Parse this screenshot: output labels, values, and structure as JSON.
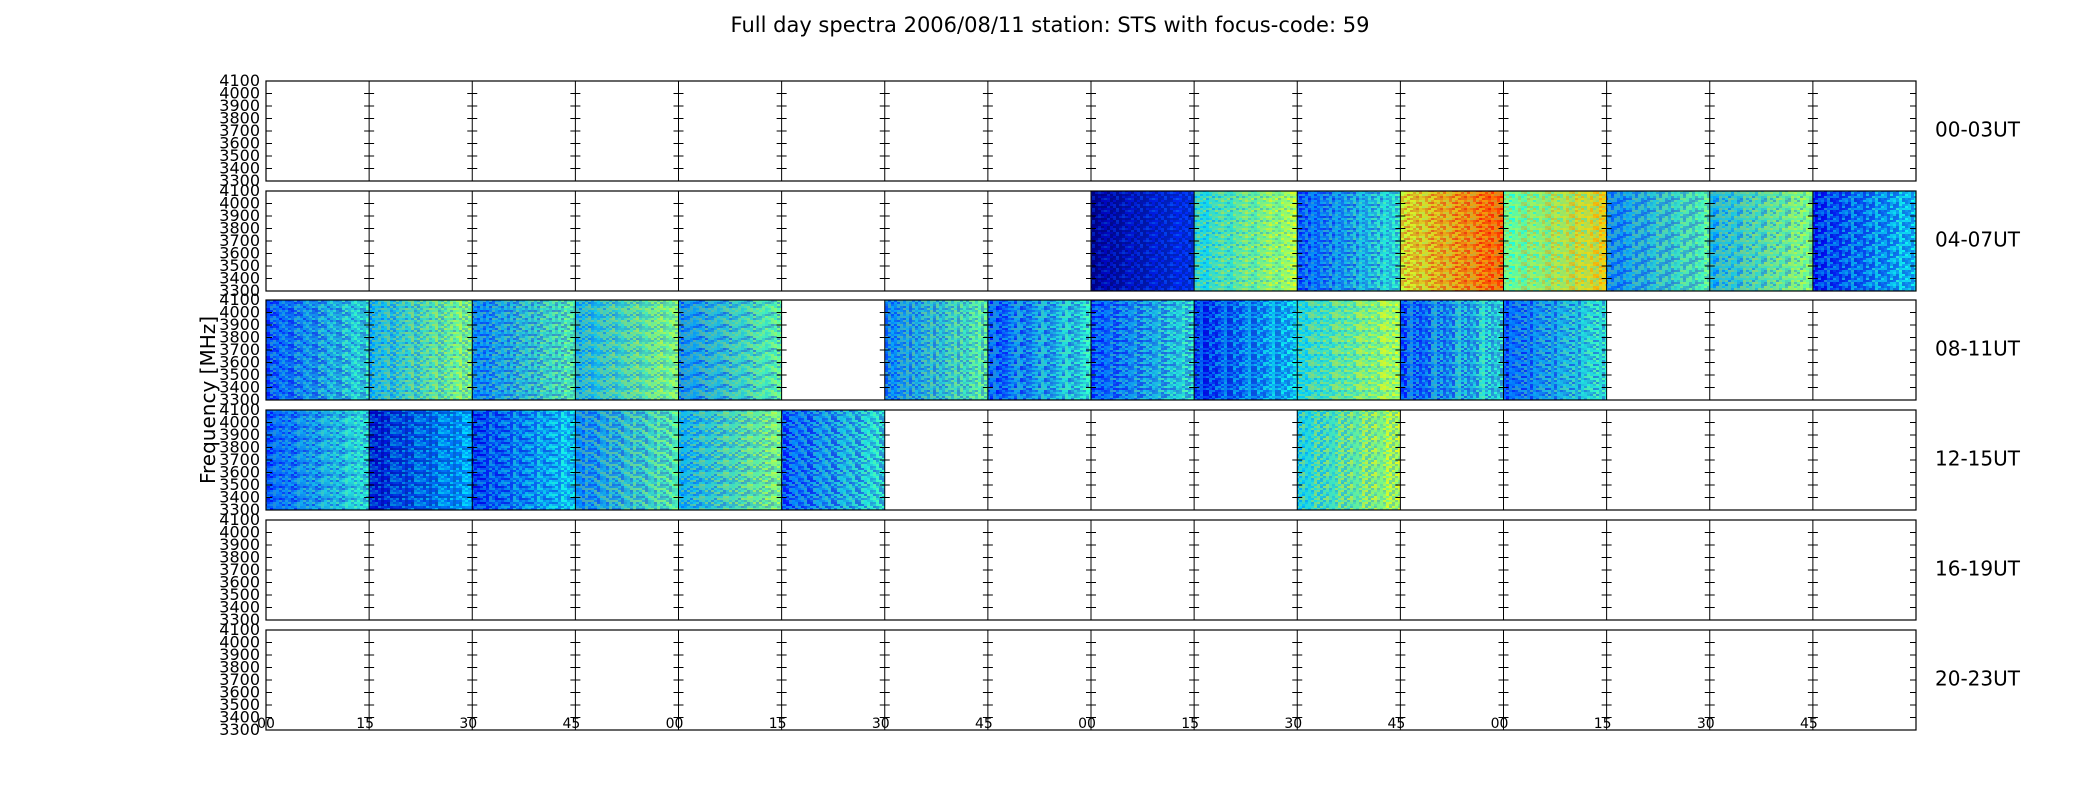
{
  "chart_data": {
    "type": "heatmap",
    "title": "Full day spectra 2006/08/11 station: STS with focus-code: 59",
    "ylabel": "Frequency [MHz]",
    "xlabel": "",
    "yticks": [
      3300,
      3400,
      3500,
      3600,
      3700,
      3800,
      3900,
      4000,
      4100
    ],
    "ylim": [
      3300,
      4100
    ],
    "xticks": [
      "00",
      "15",
      "30",
      "45",
      "00",
      "15",
      "30",
      "45",
      "00",
      "15",
      "30",
      "45",
      "00",
      "15",
      "30",
      "45"
    ],
    "segment_minutes": 15,
    "rows": [
      {
        "label": "00-03UT",
        "segments": [
          0,
          0,
          0,
          0,
          0,
          0,
          0,
          0,
          0,
          0,
          0,
          0,
          0,
          0,
          0,
          0
        ],
        "levels": [
          0,
          0,
          0,
          0,
          0,
          0,
          0,
          0,
          0,
          0,
          0,
          0,
          0,
          0,
          0,
          0
        ]
      },
      {
        "label": "04-07UT",
        "segments": [
          0,
          0,
          0,
          0,
          0,
          0,
          0,
          0,
          1,
          1,
          1,
          1,
          1,
          1,
          1,
          1
        ],
        "levels": [
          0,
          0,
          0,
          0,
          0,
          0,
          0,
          0,
          0.05,
          0.45,
          0.3,
          0.7,
          0.55,
          0.35,
          0.4,
          0.25
        ]
      },
      {
        "label": "08-11UT",
        "segments": [
          1,
          1,
          1,
          1,
          1,
          0,
          1,
          1,
          1,
          1,
          1,
          1,
          1,
          0,
          0,
          0
        ],
        "levels": [
          0.3,
          0.4,
          0.35,
          0.4,
          0.35,
          0,
          0.35,
          0.3,
          0.3,
          0.25,
          0.45,
          0.3,
          0.3,
          0,
          0,
          0
        ]
      },
      {
        "label": "12-15UT",
        "segments": [
          1,
          1,
          1,
          1,
          1,
          1,
          0,
          0,
          0,
          0,
          1,
          0,
          0,
          0,
          0,
          0
        ],
        "levels": [
          0.3,
          0.2,
          0.25,
          0.35,
          0.4,
          0.3,
          0,
          0,
          0,
          0,
          0.45,
          0,
          0,
          0,
          0,
          0
        ]
      },
      {
        "label": "16-19UT",
        "segments": [
          0,
          0,
          0,
          0,
          0,
          0,
          0,
          0,
          0,
          0,
          0,
          0,
          0,
          0,
          0,
          0
        ],
        "levels": [
          0,
          0,
          0,
          0,
          0,
          0,
          0,
          0,
          0,
          0,
          0,
          0,
          0,
          0,
          0,
          0
        ]
      },
      {
        "label": "20-23UT",
        "segments": [
          0,
          0,
          0,
          0,
          0,
          0,
          0,
          0,
          0,
          0,
          0,
          0,
          0,
          0,
          0,
          0
        ],
        "levels": [
          0,
          0,
          0,
          0,
          0,
          0,
          0,
          0,
          0,
          0,
          0,
          0,
          0,
          0,
          0,
          0
        ]
      }
    ],
    "colormap": "jet",
    "grid": false
  }
}
